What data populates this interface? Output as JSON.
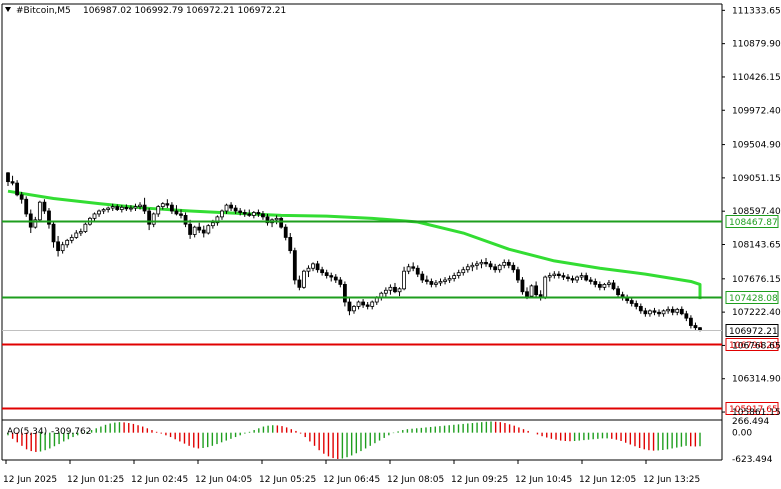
{
  "header": {
    "symbol_label": "#Bitcoin,M5",
    "ohlc": "106987.02 106992.79 106972.21 106972.21"
  },
  "price_scale": {
    "labels": [
      "111333.65",
      "110879.90",
      "110426.15",
      "109972.40",
      "109504.90",
      "109051.15",
      "108597.40",
      "108143.65",
      "107676.15",
      "107222.40",
      "106768.65",
      "106314.90",
      "105861.15"
    ]
  },
  "levels": [
    {
      "price": 108467.87,
      "label": "108467.87",
      "color": "#1e9e1e"
    },
    {
      "price": 107428.08,
      "label": "107428.08",
      "color": "#1e9e1e"
    },
    {
      "price": 106794.2,
      "label": "106794.20",
      "color": "#e00000"
    },
    {
      "price": 105917.65,
      "label": "105917.65",
      "color": "#e00000"
    }
  ],
  "current_price": {
    "price": 106972.21,
    "label": "106972.21"
  },
  "time_axis": {
    "labels": [
      "12 Jun 2025",
      "12 Jun 01:25",
      "12 Jun 02:45",
      "12 Jun 04:05",
      "12 Jun 05:25",
      "12 Jun 06:45",
      "12 Jun 08:05",
      "12 Jun 09:25",
      "12 Jun 10:45",
      "12 Jun 12:05",
      "12 Jun 13:25"
    ]
  },
  "indicator": {
    "name_label": "AO(5,34)",
    "value_label": "-309.762",
    "scale_labels": [
      "266.494",
      "0.00",
      "-623.494"
    ]
  },
  "chart_data": {
    "type": "candlestick",
    "symbol": "#Bitcoin",
    "timeframe": "M5",
    "ylim": [
      105780,
      111420
    ],
    "moving_average": {
      "color": "#33dd33",
      "points": [
        [
          0,
          108870
        ],
        [
          10,
          108770
        ],
        [
          20,
          108700
        ],
        [
          30,
          108640
        ],
        [
          40,
          108600
        ],
        [
          50,
          108570
        ],
        [
          60,
          108540
        ],
        [
          70,
          108530
        ],
        [
          80,
          108500
        ],
        [
          90,
          108450
        ],
        [
          100,
          108300
        ],
        [
          110,
          108080
        ],
        [
          120,
          107920
        ],
        [
          130,
          107820
        ],
        [
          140,
          107740
        ],
        [
          150,
          107640
        ],
        [
          160,
          107600
        ],
        [
          170,
          107520
        ],
        [
          180,
          107500
        ],
        [
          190,
          107480
        ],
        [
          200,
          107470
        ],
        [
          210,
          107400
        ]
      ]
    },
    "candles": [
      [
        109120,
        109130,
        108940,
        109000
      ],
      [
        109000,
        109080,
        108950,
        108980
      ],
      [
        108980,
        109020,
        108800,
        108820
      ],
      [
        108820,
        108860,
        108700,
        108760
      ],
      [
        108760,
        108800,
        108520,
        108560
      ],
      [
        108560,
        108620,
        108300,
        108380
      ],
      [
        108380,
        108520,
        108360,
        108480
      ],
      [
        108480,
        108740,
        108450,
        108720
      ],
      [
        108720,
        108760,
        108560,
        108600
      ],
      [
        108600,
        108640,
        108360,
        108420
      ],
      [
        108420,
        108460,
        108100,
        108180
      ],
      [
        108180,
        108260,
        107980,
        108060
      ],
      [
        108060,
        108180,
        108020,
        108140
      ],
      [
        108140,
        108220,
        108100,
        108200
      ],
      [
        108200,
        108280,
        108160,
        108240
      ],
      [
        108240,
        108340,
        108220,
        108300
      ],
      [
        108300,
        108360,
        108260,
        108320
      ],
      [
        108320,
        108440,
        108300,
        108420
      ],
      [
        108420,
        108520,
        108400,
        108500
      ],
      [
        108500,
        108580,
        108460,
        108560
      ],
      [
        108560,
        108620,
        108520,
        108600
      ],
      [
        108600,
        108640,
        108560,
        108620
      ],
      [
        108620,
        108660,
        108580,
        108640
      ],
      [
        108640,
        108700,
        108600,
        108660
      ],
      [
        108660,
        108690,
        108600,
        108620
      ],
      [
        108620,
        108680,
        108580,
        108650
      ],
      [
        108650,
        108690,
        108600,
        108630
      ],
      [
        108630,
        108680,
        108590,
        108640
      ],
      [
        108640,
        108700,
        108600,
        108660
      ],
      [
        108660,
        108720,
        108620,
        108680
      ],
      [
        108680,
        108780,
        108560,
        108600
      ],
      [
        108600,
        108640,
        108340,
        108420
      ],
      [
        108420,
        108580,
        108380,
        108560
      ],
      [
        108560,
        108680,
        108520,
        108660
      ],
      [
        108660,
        108720,
        108620,
        108700
      ],
      [
        108700,
        108760,
        108640,
        108680
      ],
      [
        108680,
        108720,
        108560,
        108600
      ],
      [
        108600,
        108680,
        108540,
        108560
      ],
      [
        108560,
        108620,
        108500,
        108540
      ],
      [
        108540,
        108580,
        108380,
        108420
      ],
      [
        108420,
        108480,
        108220,
        108280
      ],
      [
        108280,
        108400,
        108240,
        108380
      ],
      [
        108380,
        108440,
        108300,
        108340
      ],
      [
        108340,
        108400,
        108240,
        108300
      ],
      [
        108300,
        108420,
        108280,
        108400
      ],
      [
        108400,
        108480,
        108360,
        108440
      ],
      [
        108440,
        108540,
        108400,
        108520
      ],
      [
        108520,
        108620,
        108480,
        108600
      ],
      [
        108600,
        108700,
        108560,
        108680
      ],
      [
        108680,
        108720,
        108600,
        108640
      ],
      [
        108640,
        108680,
        108560,
        108600
      ],
      [
        108600,
        108640,
        108540,
        108580
      ],
      [
        108580,
        108620,
        108520,
        108560
      ],
      [
        108560,
        108620,
        108520,
        108540
      ],
      [
        108540,
        108600,
        108500,
        108580
      ],
      [
        108580,
        108620,
        108520,
        108560
      ],
      [
        108560,
        108600,
        108480,
        108520
      ],
      [
        108520,
        108560,
        108400,
        108440
      ],
      [
        108440,
        108500,
        108380,
        108480
      ],
      [
        108480,
        108540,
        108420,
        108500
      ],
      [
        108500,
        108520,
        108360,
        108380
      ],
      [
        108380,
        108420,
        108200,
        108240
      ],
      [
        108240,
        108300,
        108020,
        108060
      ],
      [
        108060,
        108100,
        107600,
        107660
      ],
      [
        107660,
        107720,
        107520,
        107560
      ],
      [
        107560,
        107800,
        107540,
        107780
      ],
      [
        107780,
        107860,
        107700,
        107820
      ],
      [
        107820,
        107900,
        107780,
        107880
      ],
      [
        107880,
        107920,
        107760,
        107800
      ],
      [
        107800,
        107840,
        107720,
        107760
      ],
      [
        107760,
        107800,
        107680,
        107720
      ],
      [
        107720,
        107760,
        107640,
        107700
      ],
      [
        107700,
        107740,
        107620,
        107660
      ],
      [
        107660,
        107700,
        107560,
        107600
      ],
      [
        107600,
        107640,
        107300,
        107360
      ],
      [
        107360,
        107420,
        107180,
        107240
      ],
      [
        107240,
        107320,
        107200,
        107300
      ],
      [
        107300,
        107380,
        107260,
        107360
      ],
      [
        107360,
        107400,
        107280,
        107320
      ],
      [
        107320,
        107360,
        107260,
        107300
      ],
      [
        107300,
        107380,
        107260,
        107360
      ],
      [
        107360,
        107440,
        107320,
        107420
      ],
      [
        107420,
        107500,
        107380,
        107480
      ],
      [
        107480,
        107560,
        107420,
        107520
      ],
      [
        107520,
        107600,
        107460,
        107560
      ],
      [
        107560,
        107620,
        107480,
        107500
      ],
      [
        107500,
        107560,
        107440,
        107540
      ],
      [
        107540,
        107840,
        107520,
        107780
      ],
      [
        107780,
        107880,
        107740,
        107840
      ],
      [
        107840,
        107900,
        107780,
        107820
      ],
      [
        107820,
        107860,
        107700,
        107740
      ],
      [
        107740,
        107780,
        107620,
        107660
      ],
      [
        107660,
        107720,
        107600,
        107640
      ],
      [
        107640,
        107680,
        107560,
        107600
      ],
      [
        107600,
        107660,
        107560,
        107620
      ],
      [
        107620,
        107680,
        107580,
        107640
      ],
      [
        107640,
        107700,
        107600,
        107660
      ],
      [
        107660,
        107720,
        107620,
        107680
      ],
      [
        107680,
        107760,
        107640,
        107720
      ],
      [
        107720,
        107800,
        107680,
        107760
      ],
      [
        107760,
        107840,
        107720,
        107800
      ],
      [
        107800,
        107880,
        107760,
        107840
      ],
      [
        107840,
        107900,
        107780,
        107860
      ],
      [
        107860,
        107920,
        107800,
        107880
      ],
      [
        107880,
        107940,
        107820,
        107900
      ],
      [
        107900,
        107960,
        107840,
        107880
      ],
      [
        107880,
        107920,
        107800,
        107840
      ],
      [
        107840,
        107880,
        107760,
        107800
      ],
      [
        107800,
        107880,
        107760,
        107860
      ],
      [
        107860,
        107940,
        107820,
        107900
      ],
      [
        107900,
        107940,
        107820,
        107860
      ],
      [
        107860,
        107900,
        107760,
        107800
      ],
      [
        107800,
        107840,
        107620,
        107660
      ],
      [
        107660,
        107700,
        107460,
        107500
      ],
      [
        107500,
        107560,
        107400,
        107440
      ],
      [
        107440,
        107600,
        107420,
        107580
      ],
      [
        107580,
        107640,
        107420,
        107460
      ],
      [
        107460,
        107520,
        107380,
        107420
      ],
      [
        107420,
        107720,
        107400,
        107700
      ],
      [
        107700,
        107760,
        107640,
        107720
      ],
      [
        107720,
        107780,
        107680,
        107740
      ],
      [
        107740,
        107780,
        107680,
        107720
      ],
      [
        107720,
        107760,
        107660,
        107700
      ],
      [
        107700,
        107740,
        107640,
        107680
      ],
      [
        107680,
        107720,
        107620,
        107660
      ],
      [
        107660,
        107720,
        107620,
        107700
      ],
      [
        107700,
        107760,
        107660,
        107720
      ],
      [
        107720,
        107760,
        107640,
        107660
      ],
      [
        107660,
        107700,
        107600,
        107640
      ],
      [
        107640,
        107680,
        107560,
        107600
      ],
      [
        107600,
        107640,
        107520,
        107560
      ],
      [
        107560,
        107620,
        107520,
        107600
      ],
      [
        107600,
        107660,
        107560,
        107620
      ],
      [
        107620,
        107660,
        107520,
        107540
      ],
      [
        107540,
        107580,
        107420,
        107460
      ],
      [
        107460,
        107500,
        107380,
        107420
      ],
      [
        107420,
        107460,
        107340,
        107380
      ],
      [
        107380,
        107420,
        107300,
        107340
      ],
      [
        107340,
        107380,
        107260,
        107300
      ],
      [
        107300,
        107340,
        107200,
        107240
      ],
      [
        107240,
        107280,
        107160,
        107200
      ],
      [
        107200,
        107260,
        107160,
        107240
      ],
      [
        107240,
        107280,
        107180,
        107220
      ],
      [
        107220,
        107260,
        107160,
        107200
      ],
      [
        107200,
        107260,
        107160,
        107240
      ],
      [
        107240,
        107300,
        107200,
        107260
      ],
      [
        107260,
        107300,
        107180,
        107220
      ],
      [
        107220,
        107280,
        107180,
        107260
      ],
      [
        107260,
        107300,
        107180,
        107200
      ],
      [
        107200,
        107240,
        107100,
        107140
      ],
      [
        107140,
        107180,
        107000,
        107040
      ],
      [
        107040,
        107080,
        106980,
        107010
      ],
      [
        107010,
        107020,
        106960,
        106972
      ]
    ],
    "ao_histogram": [
      -60,
      -140,
      -220,
      -300,
      -380,
      -420,
      -440,
      -430,
      -400,
      -360,
      -310,
      -260,
      -200,
      -150,
      -100,
      -60,
      -20,
      20,
      60,
      100,
      140,
      180,
      210,
      230,
      240,
      235,
      220,
      200,
      170,
      140,
      100,
      60,
      20,
      -20,
      -60,
      -100,
      -150,
      -200,
      -250,
      -300,
      -340,
      -360,
      -350,
      -330,
      -300,
      -260,
      -220,
      -180,
      -140,
      -100,
      -60,
      -20,
      20,
      60,
      100,
      140,
      160,
      170,
      165,
      150,
      120,
      80,
      40,
      -20,
      -100,
      -200,
      -300,
      -400,
      -480,
      -540,
      -580,
      -600,
      -590,
      -560,
      -520,
      -470,
      -420,
      -360,
      -300,
      -240,
      -180,
      -120,
      -60,
      -10,
      30,
      60,
      80,
      90,
      100,
      110,
      120,
      130,
      140,
      150,
      160,
      170,
      180,
      190,
      200,
      210,
      220,
      230,
      240,
      250,
      255,
      250,
      240,
      220,
      190,
      160,
      120,
      80,
      40,
      0,
      -40,
      -80,
      -110,
      -140,
      -160,
      -180,
      -190,
      -195,
      -190,
      -180,
      -170,
      -160,
      -150,
      -140,
      -130,
      -130,
      -140,
      -160,
      -190,
      -230,
      -270,
      -310,
      -350,
      -380,
      -400,
      -410,
      -405,
      -395,
      -380,
      -360,
      -340,
      -320,
      -300,
      -310,
      -315,
      -309
    ]
  }
}
